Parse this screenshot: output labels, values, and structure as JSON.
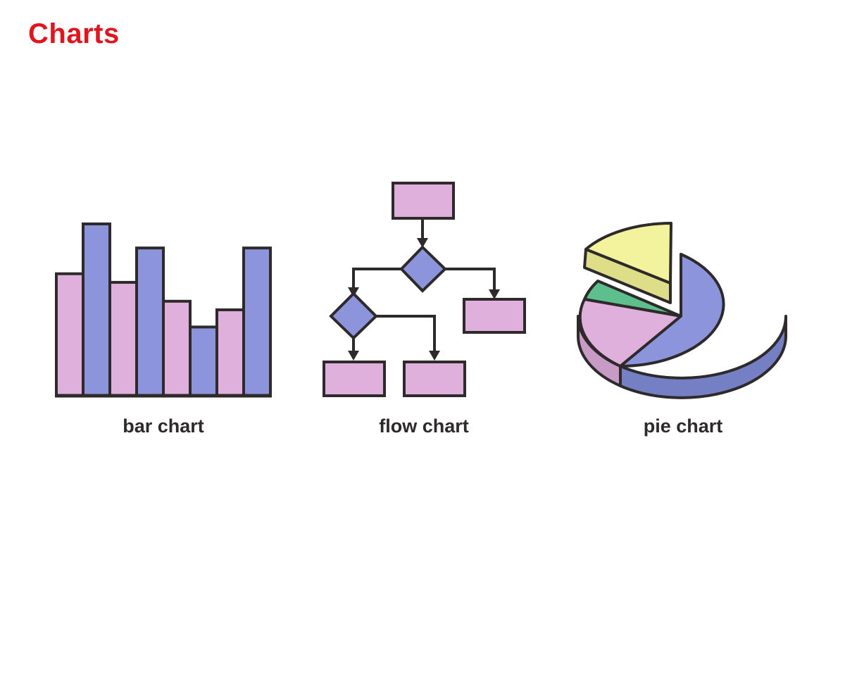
{
  "page": {
    "title": "Charts"
  },
  "colors": {
    "title": "#e0161f",
    "outline": "#2e2a2b",
    "pink": "#dfb0dc",
    "pink_side": "#c89bc6",
    "blue": "#8c94dc",
    "blue_side": "#7580c4",
    "yellow": "#f3f39e",
    "yellow_side": "#dede88",
    "green": "#5cbf8d",
    "green_side": "#4aa777"
  },
  "illustrations": [
    {
      "caption": "bar chart",
      "icon": "bar-chart-icon",
      "bar_levels": [
        0.71,
        1.0,
        0.66,
        0.86,
        0.55,
        0.4,
        0.5,
        0.86
      ],
      "bar_colors": [
        "pink",
        "blue",
        "pink",
        "blue",
        "pink",
        "blue",
        "pink",
        "blue"
      ]
    },
    {
      "caption": "flow chart",
      "icon": "flow-chart-icon"
    },
    {
      "caption": "pie chart",
      "icon": "pie-chart-icon",
      "slices": [
        {
          "color": "blue",
          "share": 0.6
        },
        {
          "color": "pink",
          "share": 0.18
        },
        {
          "color": "green",
          "share": 0.05
        },
        {
          "color": "yellow",
          "share": 0.17
        }
      ]
    }
  ]
}
